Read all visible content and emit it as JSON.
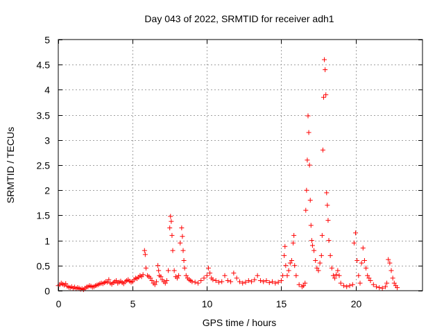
{
  "chart_data": {
    "type": "scatter",
    "title": "Day 043 of 2022, SRMTID for receiver adh1",
    "xlabel": "GPS time / hours",
    "ylabel": "SRMTID / TECUs",
    "xlim": [
      0,
      24.5
    ],
    "ylim": [
      0,
      5
    ],
    "x_ticks": [
      0,
      5,
      10,
      15,
      20
    ],
    "x_tick_labels": [
      "0",
      "5",
      "10",
      "15",
      "20"
    ],
    "y_ticks": [
      0,
      0.5,
      1,
      1.5,
      2,
      2.5,
      3,
      3.5,
      4,
      4.5,
      5
    ],
    "y_tick_labels": [
      "0",
      "0.5",
      "1",
      "1.5",
      "2",
      "2.5",
      "3",
      "3.5",
      "4",
      "4.5",
      "5"
    ],
    "grid": true,
    "marker": "+",
    "color": "#ff0000",
    "series": [
      {
        "name": "adh1",
        "points": [
          [
            0.0,
            0.1
          ],
          [
            0.1,
            0.12
          ],
          [
            0.2,
            0.15
          ],
          [
            0.3,
            0.13
          ],
          [
            0.4,
            0.11
          ],
          [
            0.5,
            0.14
          ],
          [
            0.6,
            0.09
          ],
          [
            0.7,
            0.07
          ],
          [
            0.8,
            0.06
          ],
          [
            0.9,
            0.08
          ],
          [
            1.0,
            0.05
          ],
          [
            1.1,
            0.07
          ],
          [
            1.2,
            0.04
          ],
          [
            1.3,
            0.06
          ],
          [
            1.4,
            0.05
          ],
          [
            1.5,
            0.03
          ],
          [
            1.6,
            0.04
          ],
          [
            1.7,
            0.02
          ],
          [
            1.8,
            0.05
          ],
          [
            1.9,
            0.07
          ],
          [
            2.0,
            0.08
          ],
          [
            2.1,
            0.1
          ],
          [
            2.2,
            0.09
          ],
          [
            2.3,
            0.07
          ],
          [
            2.4,
            0.08
          ],
          [
            2.5,
            0.1
          ],
          [
            2.6,
            0.11
          ],
          [
            2.7,
            0.12
          ],
          [
            2.8,
            0.14
          ],
          [
            2.9,
            0.15
          ],
          [
            3.0,
            0.14
          ],
          [
            3.1,
            0.16
          ],
          [
            3.2,
            0.18
          ],
          [
            3.3,
            0.17
          ],
          [
            3.4,
            0.22
          ],
          [
            3.5,
            0.15
          ],
          [
            3.6,
            0.13
          ],
          [
            3.7,
            0.16
          ],
          [
            3.8,
            0.18
          ],
          [
            3.9,
            0.2
          ],
          [
            4.0,
            0.15
          ],
          [
            4.1,
            0.17
          ],
          [
            4.2,
            0.19
          ],
          [
            4.3,
            0.16
          ],
          [
            4.4,
            0.14
          ],
          [
            4.5,
            0.18
          ],
          [
            4.6,
            0.2
          ],
          [
            4.7,
            0.22
          ],
          [
            4.8,
            0.19
          ],
          [
            4.9,
            0.17
          ],
          [
            5.0,
            0.18
          ],
          [
            5.1,
            0.22
          ],
          [
            5.2,
            0.25
          ],
          [
            5.3,
            0.24
          ],
          [
            5.4,
            0.27
          ],
          [
            5.5,
            0.3
          ],
          [
            5.6,
            0.28
          ],
          [
            5.7,
            0.32
          ],
          [
            5.8,
            0.8
          ],
          [
            5.85,
            0.72
          ],
          [
            5.9,
            0.45
          ],
          [
            6.0,
            0.3
          ],
          [
            6.1,
            0.28
          ],
          [
            6.2,
            0.25
          ],
          [
            6.3,
            0.2
          ],
          [
            6.4,
            0.15
          ],
          [
            6.5,
            0.12
          ],
          [
            6.6,
            0.18
          ],
          [
            6.7,
            0.5
          ],
          [
            6.75,
            0.4
          ],
          [
            6.8,
            0.3
          ],
          [
            6.9,
            0.28
          ],
          [
            7.0,
            0.22
          ],
          [
            7.1,
            0.18
          ],
          [
            7.2,
            0.15
          ],
          [
            7.3,
            0.2
          ],
          [
            7.4,
            0.4
          ],
          [
            7.5,
            1.25
          ],
          [
            7.55,
            1.48
          ],
          [
            7.6,
            1.38
          ],
          [
            7.65,
            1.1
          ],
          [
            7.7,
            0.8
          ],
          [
            7.8,
            0.4
          ],
          [
            7.9,
            0.28
          ],
          [
            8.0,
            0.25
          ],
          [
            8.1,
            0.3
          ],
          [
            8.2,
            0.95
          ],
          [
            8.3,
            1.25
          ],
          [
            8.35,
            1.08
          ],
          [
            8.4,
            0.8
          ],
          [
            8.45,
            0.6
          ],
          [
            8.5,
            0.45
          ],
          [
            8.6,
            0.3
          ],
          [
            8.7,
            0.25
          ],
          [
            8.8,
            0.22
          ],
          [
            8.9,
            0.2
          ],
          [
            9.0,
            0.18
          ],
          [
            9.2,
            0.17
          ],
          [
            9.4,
            0.15
          ],
          [
            9.6,
            0.2
          ],
          [
            9.8,
            0.25
          ],
          [
            10.0,
            0.3
          ],
          [
            10.1,
            0.45
          ],
          [
            10.2,
            0.35
          ],
          [
            10.3,
            0.25
          ],
          [
            10.4,
            0.22
          ],
          [
            10.6,
            0.2
          ],
          [
            10.8,
            0.17
          ],
          [
            11.0,
            0.18
          ],
          [
            11.2,
            0.3
          ],
          [
            11.4,
            0.2
          ],
          [
            11.6,
            0.18
          ],
          [
            11.8,
            0.35
          ],
          [
            12.0,
            0.25
          ],
          [
            12.2,
            0.18
          ],
          [
            12.4,
            0.15
          ],
          [
            12.6,
            0.17
          ],
          [
            12.8,
            0.2
          ],
          [
            13.0,
            0.18
          ],
          [
            13.2,
            0.22
          ],
          [
            13.4,
            0.3
          ],
          [
            13.6,
            0.2
          ],
          [
            13.8,
            0.18
          ],
          [
            14.0,
            0.2
          ],
          [
            14.2,
            0.16
          ],
          [
            14.4,
            0.18
          ],
          [
            14.6,
            0.15
          ],
          [
            14.8,
            0.17
          ],
          [
            15.0,
            0.2
          ],
          [
            15.1,
            0.3
          ],
          [
            15.2,
            0.7
          ],
          [
            15.25,
            0.88
          ],
          [
            15.3,
            0.5
          ],
          [
            15.4,
            0.3
          ],
          [
            15.5,
            0.4
          ],
          [
            15.6,
            0.55
          ],
          [
            15.7,
            0.6
          ],
          [
            15.8,
            0.95
          ],
          [
            15.85,
            1.1
          ],
          [
            15.9,
            0.5
          ],
          [
            16.0,
            0.3
          ],
          [
            16.2,
            0.12
          ],
          [
            16.4,
            0.08
          ],
          [
            16.5,
            0.1
          ],
          [
            16.6,
            0.15
          ],
          [
            16.65,
            1.6
          ],
          [
            16.7,
            2.0
          ],
          [
            16.75,
            2.6
          ],
          [
            16.8,
            3.48
          ],
          [
            16.85,
            3.15
          ],
          [
            16.9,
            2.5
          ],
          [
            16.95,
            1.8
          ],
          [
            17.0,
            1.3
          ],
          [
            17.05,
            1.0
          ],
          [
            17.1,
            0.9
          ],
          [
            17.2,
            0.8
          ],
          [
            17.3,
            0.6
          ],
          [
            17.4,
            0.45
          ],
          [
            17.5,
            0.4
          ],
          [
            17.6,
            0.55
          ],
          [
            17.7,
            0.7
          ],
          [
            17.75,
            1.1
          ],
          [
            17.8,
            2.8
          ],
          [
            17.85,
            3.85
          ],
          [
            17.9,
            4.6
          ],
          [
            17.95,
            4.4
          ],
          [
            18.0,
            3.9
          ],
          [
            18.05,
            1.95
          ],
          [
            18.1,
            1.7
          ],
          [
            18.15,
            1.4
          ],
          [
            18.2,
            1.0
          ],
          [
            18.3,
            0.7
          ],
          [
            18.4,
            0.45
          ],
          [
            18.5,
            0.3
          ],
          [
            18.6,
            0.25
          ],
          [
            18.7,
            0.32
          ],
          [
            18.8,
            0.4
          ],
          [
            18.9,
            0.3
          ],
          [
            19.0,
            0.15
          ],
          [
            19.2,
            0.1
          ],
          [
            19.4,
            0.08
          ],
          [
            19.6,
            0.1
          ],
          [
            19.8,
            0.12
          ],
          [
            19.9,
            0.95
          ],
          [
            20.0,
            1.15
          ],
          [
            20.1,
            0.6
          ],
          [
            20.2,
            0.3
          ],
          [
            20.3,
            0.15
          ],
          [
            20.4,
            0.55
          ],
          [
            20.5,
            0.85
          ],
          [
            20.6,
            0.6
          ],
          [
            20.7,
            0.45
          ],
          [
            20.8,
            0.3
          ],
          [
            20.9,
            0.25
          ],
          [
            21.0,
            0.2
          ],
          [
            21.2,
            0.12
          ],
          [
            21.4,
            0.08
          ],
          [
            21.6,
            0.06
          ],
          [
            21.8,
            0.05
          ],
          [
            22.0,
            0.08
          ],
          [
            22.1,
            0.15
          ],
          [
            22.2,
            0.62
          ],
          [
            22.3,
            0.55
          ],
          [
            22.4,
            0.4
          ],
          [
            22.5,
            0.25
          ],
          [
            22.6,
            0.15
          ],
          [
            22.7,
            0.1
          ],
          [
            22.8,
            0.06
          ]
        ]
      }
    ]
  }
}
